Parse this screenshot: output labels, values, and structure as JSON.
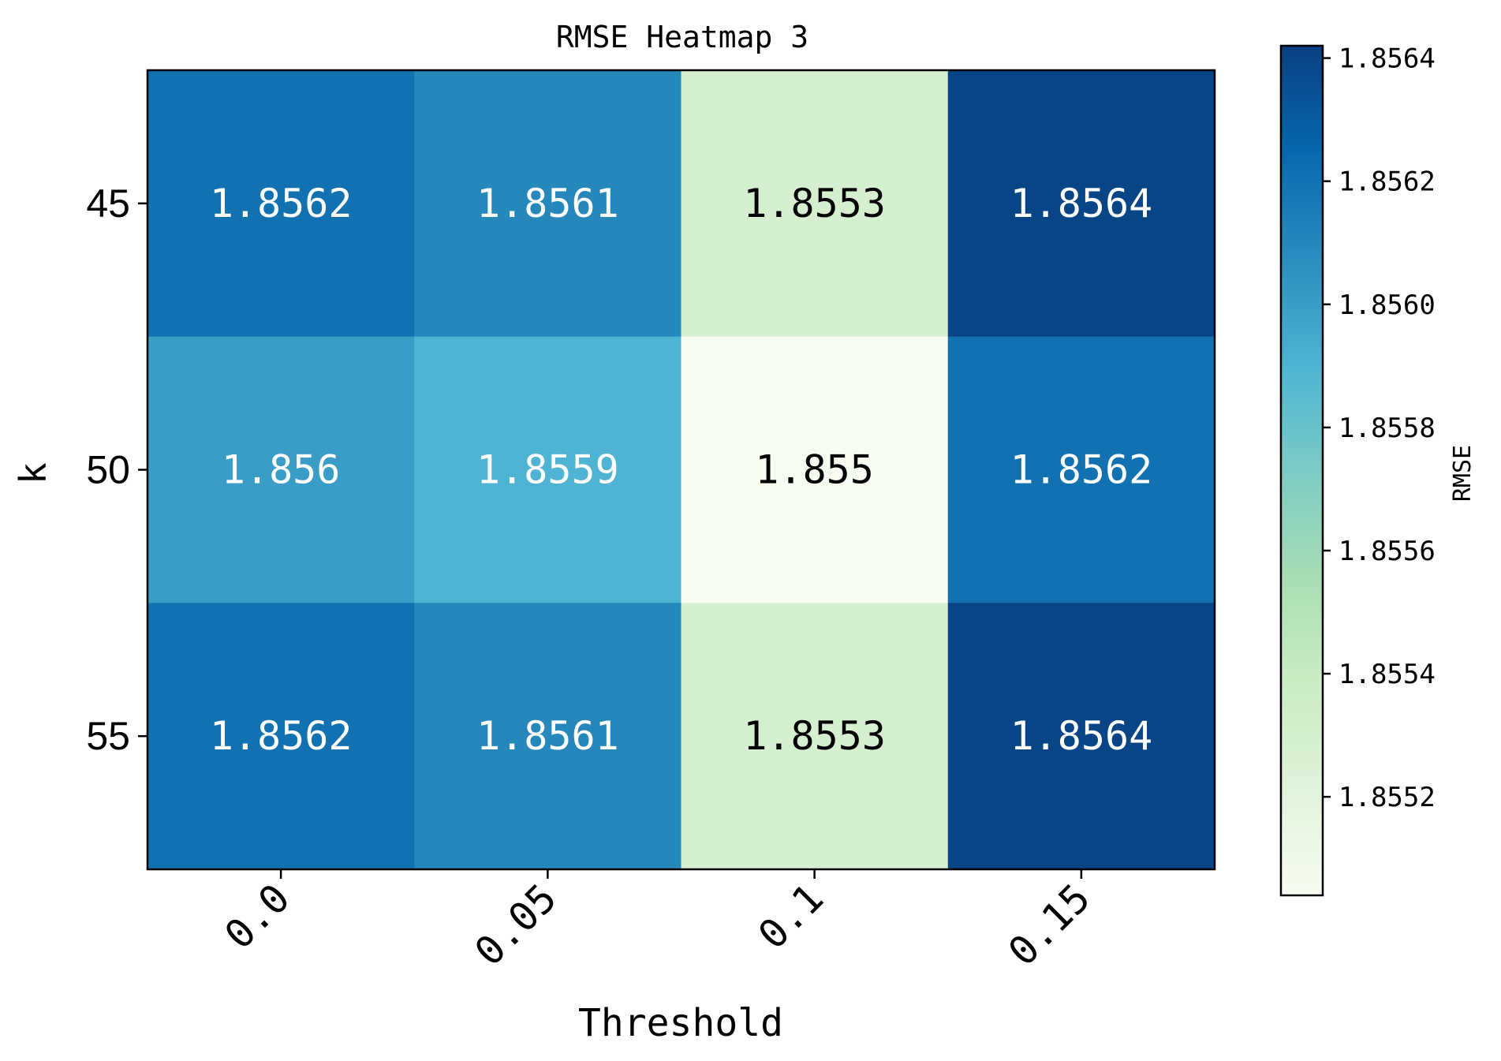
{
  "chart_data": {
    "type": "heatmap",
    "title": "RMSE Heatmap 3",
    "xlabel": "Threshold",
    "ylabel": "k",
    "x_categories": [
      "0.0",
      "0.05",
      "0.1",
      "0.15"
    ],
    "y_categories": [
      "45",
      "50",
      "55"
    ],
    "values": [
      [
        1.8562,
        1.8561,
        1.8553,
        1.8564
      ],
      [
        1.856,
        1.8559,
        1.855,
        1.8562
      ],
      [
        1.8562,
        1.8561,
        1.8553,
        1.8564
      ]
    ],
    "cell_labels": [
      [
        "1.8562",
        "1.8561",
        "1.8553",
        "1.8564"
      ],
      [
        "1.856",
        "1.8559",
        "1.855",
        "1.8562"
      ],
      [
        "1.8562",
        "1.8561",
        "1.8553",
        "1.8564"
      ]
    ],
    "colorbar": {
      "label": "RMSE",
      "range": [
        1.85504,
        1.85642
      ],
      "ticks": [
        1.8552,
        1.8554,
        1.8556,
        1.8558,
        1.856,
        1.8562,
        1.8564
      ],
      "tick_labels": [
        "1.8552",
        "1.8554",
        "1.8556",
        "1.8558",
        "1.8560",
        "1.8562",
        "1.8564"
      ]
    },
    "colormap": "GnBu",
    "colormap_stops": [
      "#f7fcf0",
      "#e0f3db",
      "#ccebc5",
      "#a8ddb5",
      "#7bccc4",
      "#4eb3d3",
      "#2b8cbe",
      "#0868ac",
      "#084081"
    ],
    "grid": false,
    "xtick_rotation_deg": 45
  }
}
